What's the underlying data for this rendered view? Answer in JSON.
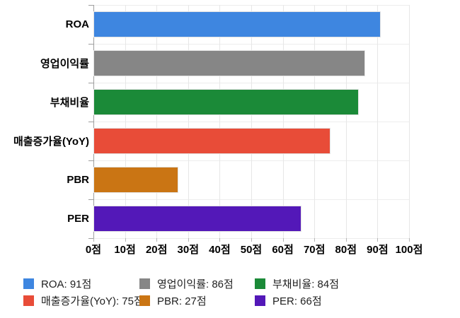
{
  "chart_data": {
    "type": "bar",
    "orientation": "horizontal",
    "title": "",
    "xlabel": "",
    "ylabel": "",
    "unit": "점",
    "xlim": [
      0,
      100
    ],
    "grid": true,
    "legend_position": "bottom",
    "categories": [
      "ROA",
      "영업이익률",
      "부채비율",
      "매출증가율(YoY)",
      "PBR",
      "PER"
    ],
    "values": [
      91,
      86,
      84,
      75,
      27,
      66
    ],
    "colors": [
      "#3e86e0",
      "#868686",
      "#1b8a38",
      "#e84c38",
      "#ca7514",
      "#5318b8"
    ],
    "x_tick_labels": [
      "0점",
      "10점",
      "20점",
      "30점",
      "40점",
      "50점",
      "60점",
      "70점",
      "80점",
      "90점",
      "100점"
    ],
    "legend": [
      {
        "label": "ROA: 91점",
        "color": "#3e86e0"
      },
      {
        "label": "영업이익률: 86점",
        "color": "#868686"
      },
      {
        "label": "부채비율: 84점",
        "color": "#1b8a38"
      },
      {
        "label": "매출증가율(YoY): 75점",
        "color": "#e84c38"
      },
      {
        "label": "PBR: 27점",
        "color": "#ca7514"
      },
      {
        "label": "PER: 66점",
        "color": "#5318b8"
      }
    ]
  }
}
